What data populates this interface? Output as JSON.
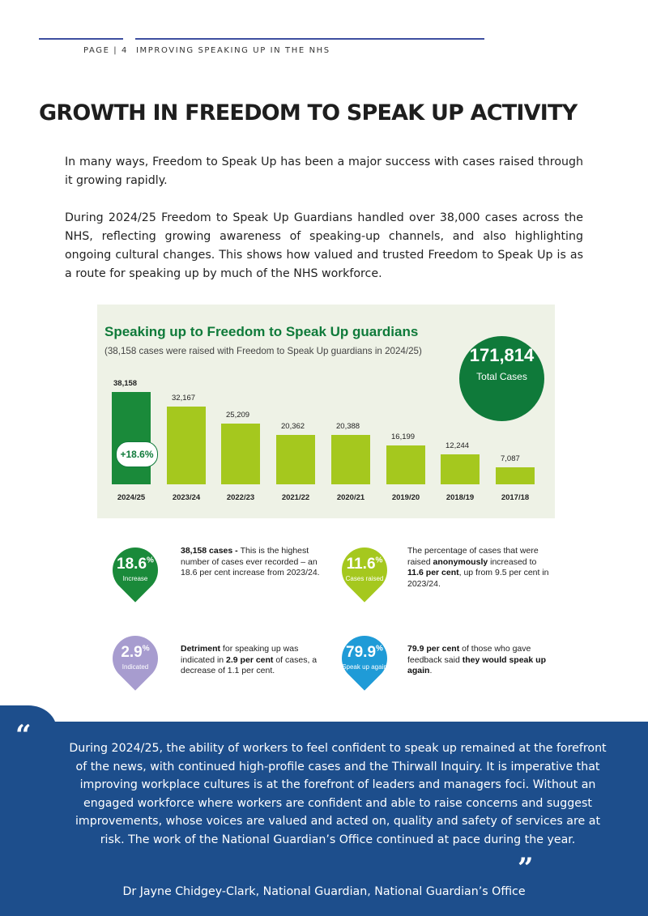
{
  "header": {
    "page_label": "PAGE | 4",
    "section_label": "IMPROVING SPEAKING UP IN THE NHS"
  },
  "title": "GROWTH IN FREEDOM TO SPEAK UP ACTIVITY",
  "paragraphs": [
    "In many ways, Freedom to Speak Up has been a major success with cases raised through it growing rapidly.",
    "During 2024/25 Freedom to Speak Up Guardians handled over 38,000 cases across the NHS, reflecting growing awareness of speaking-up channels, and also highlighting ongoing cultural changes. This shows how valued and trusted Freedom to Speak Up is as a route for speaking up by much of the NHS workforce."
  ],
  "chart_data": {
    "type": "bar",
    "title": "Speaking up to Freedom to Speak Up guardians",
    "subtitle": "(38,158 cases were raised with Freedom to Speak Up guardians in 2024/25)",
    "categories": [
      "2024/25",
      "2023/24",
      "2022/23",
      "2021/22",
      "2020/21",
      "2019/20",
      "2018/19",
      "2017/18"
    ],
    "values": [
      38158,
      32167,
      25209,
      20362,
      20388,
      16199,
      12244,
      7087
    ],
    "value_labels": [
      "38,158",
      "32,167",
      "25,209",
      "20,362",
      "20,388",
      "16,199",
      "12,244",
      "7,087"
    ],
    "ylim": [
      0,
      38158
    ],
    "colors": {
      "highlight": "#1a8a3a",
      "bar": "#a5c81e"
    },
    "increase_label": "+18.6%",
    "total": {
      "value": "171,814",
      "label": "Total Cases",
      "color": "#0f7a3a"
    }
  },
  "stats": [
    {
      "value": "18.6",
      "unit": "%",
      "caption": "Increase",
      "color": "#1a8a3a",
      "icon": "map-pin",
      "segments": [
        {
          "text": "38,158 cases - ",
          "bold": true
        },
        {
          "text": "This is the highest number of cases ever recorded – an 18.6 per cent increase from 2023/24.",
          "bold": false
        }
      ]
    },
    {
      "value": "11.6",
      "unit": "%",
      "caption": "Cases raised",
      "color": "#a5c81e",
      "icon": "map-pin",
      "segments": [
        {
          "text": "The percentage of cases that were raised ",
          "bold": false
        },
        {
          "text": "anonymously",
          "bold": true
        },
        {
          "text": " increased to ",
          "bold": false
        },
        {
          "text": "11.6 per cent",
          "bold": true
        },
        {
          "text": ", up from 9.5 per cent in 2023/24.",
          "bold": false
        }
      ]
    },
    {
      "value": "2.9",
      "unit": "%",
      "caption": "Indicated",
      "color": "#a79ccf",
      "icon": "map-pin",
      "segments": [
        {
          "text": "Detriment",
          "bold": true
        },
        {
          "text": " for speaking up was indicated in ",
          "bold": false
        },
        {
          "text": "2.9 per cent",
          "bold": true
        },
        {
          "text": " of cases, a decrease of 1.1 per cent.",
          "bold": false
        }
      ]
    },
    {
      "value": "79.9",
      "unit": "%",
      "caption": "Speak up again",
      "color": "#1f9bd7",
      "icon": "map-pin",
      "segments": [
        {
          "text": "79.9 per cent",
          "bold": true
        },
        {
          "text": " of those who gave feedback said ",
          "bold": false
        },
        {
          "text": "they would speak up again",
          "bold": true
        },
        {
          "text": ".",
          "bold": false
        }
      ]
    }
  ],
  "quote": {
    "open_mark": "“",
    "close_mark": "”",
    "text": "During 2024/25, the ability of workers to feel confident to speak up remained at the forefront of the news, with continued high-profile cases and the Thirwall Inquiry. It is imperative that improving workplace cultures is at the forefront of leaders and managers foci. Without an engaged workforce where workers are confident and able to raise concerns and suggest improvements, whose voices are valued and acted on, quality and safety of services are at risk. The work of the National Guardian’s Office continued at pace during the year.",
    "attribution": "Dr Jayne Chidgey-Clark, National Guardian, National Guardian’s Office"
  }
}
